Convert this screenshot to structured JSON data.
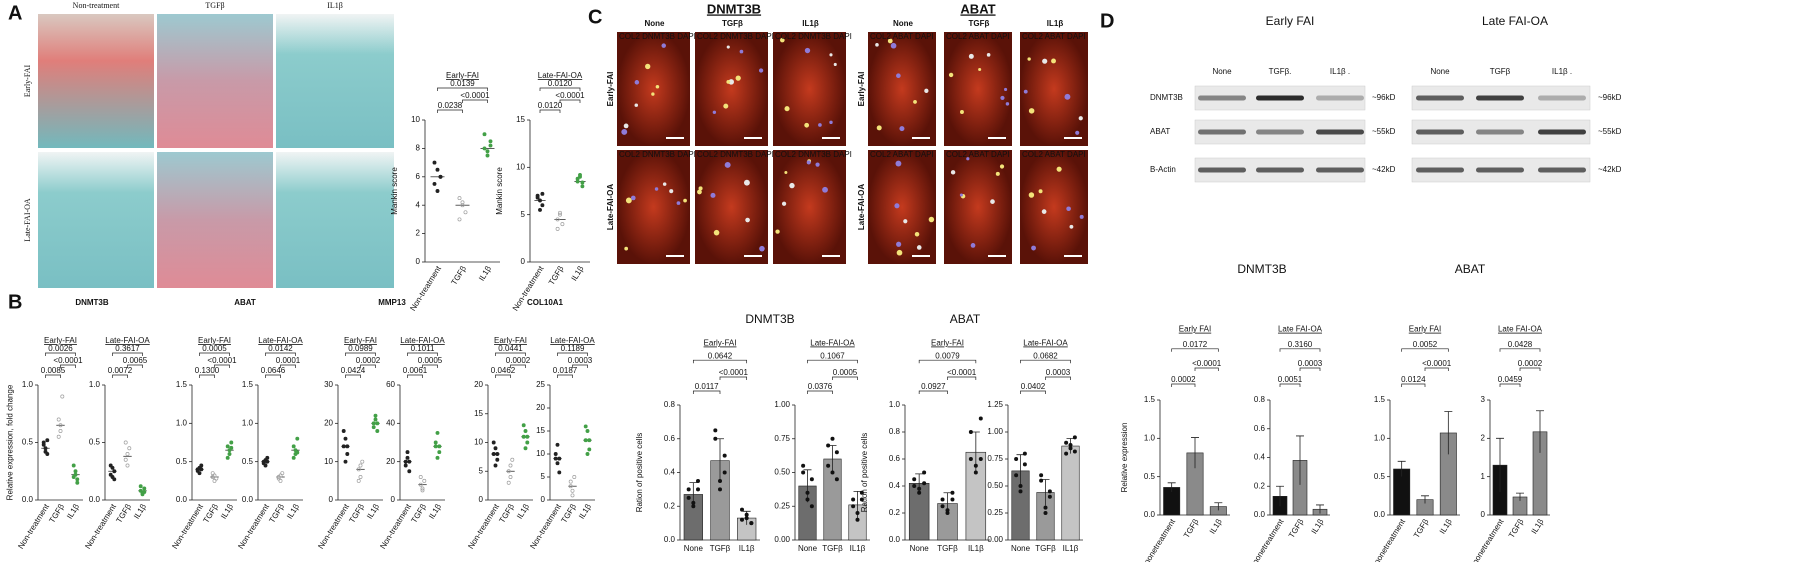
{
  "panels": {
    "A": {
      "letter": "A",
      "columns": [
        "Non-treatment",
        "TGFβ",
        "IL1β"
      ],
      "rows": [
        "Early-FAI",
        "Late-FAI-OA"
      ]
    },
    "B": {
      "letter": "B",
      "genes": [
        "DNMT3B",
        "ABAT",
        "MMP13",
        "COL10A1"
      ]
    },
    "C": {
      "letter": "C",
      "blocks": [
        {
          "gene": "DNMT3B",
          "stain": "COL2 DNMT3B DAPI"
        },
        {
          "gene": "ABAT",
          "stain": "COL2 ABAT DAPI"
        }
      ],
      "columns": [
        "None",
        "TGFβ",
        "IL1β"
      ],
      "rows": [
        "Early-FAI",
        "Late-FAI-OA"
      ],
      "genes": [
        "DNMT3B",
        "ABAT"
      ]
    },
    "D": {
      "letter": "D",
      "blots": [
        {
          "title": "Early FAI",
          "lanes": [
            "None",
            "TGFβ.",
            "IL1β ."
          ]
        },
        {
          "title": "Late FAI-OA",
          "lanes": [
            "None",
            "TGFβ",
            "IL1β ."
          ]
        }
      ],
      "proteins": [
        "DNMT3B",
        "ABAT",
        "B-Actin"
      ],
      "sizes": [
        "~96kD",
        "~55kD",
        "~42kD"
      ],
      "genes": [
        "DNMT3B",
        "ABAT"
      ]
    }
  },
  "chart_data": [
    {
      "type": "strip",
      "title": "Early-FAI",
      "ylabel": "Mankin score",
      "categories": [
        "Non-treatment",
        "TGFβ",
        "IL1β"
      ],
      "colors": [
        "#222222",
        "#9e9e9e",
        "#43a047"
      ],
      "ylim": [
        0,
        10
      ],
      "yticks": [
        0,
        2,
        4,
        6,
        8,
        10
      ],
      "values": [
        6,
        4,
        8
      ],
      "points": [
        [
          7,
          6.5,
          6,
          5.5,
          5,
          6
        ],
        [
          4.5,
          4,
          3.5,
          3,
          4.2
        ],
        [
          8,
          7.5,
          8.5,
          9,
          7.8,
          8.2
        ]
      ],
      "pvalues": [
        "0.0238",
        "<0.0001",
        "0.0139"
      ]
    },
    {
      "type": "strip",
      "title": "Late-FAI-OA",
      "ylabel": "Mankin score",
      "categories": [
        "Non-treatment",
        "TGFβ",
        "IL1β"
      ],
      "colors": [
        "#222222",
        "#9e9e9e",
        "#43a047"
      ],
      "ylim": [
        0,
        15
      ],
      "yticks": [
        0,
        5,
        10,
        15
      ],
      "values": [
        6.5,
        4.5,
        8.5
      ],
      "points": [
        [
          7,
          6.5,
          6,
          6.8,
          5.5,
          7.2
        ],
        [
          4.5,
          5,
          4,
          3.5,
          5.2
        ],
        [
          8.5,
          9,
          8,
          8.8,
          9.2,
          8.4
        ]
      ],
      "pvalues": [
        "0.0120",
        "<0.0001",
        "0.0120"
      ]
    },
    {
      "type": "strip",
      "title": "Early-FAI",
      "ylabel": "Relative expression, fold change",
      "categories": [
        "Non-treatment",
        "TGFβ",
        "IL1β"
      ],
      "colors": [
        "#222222",
        "#9e9e9e",
        "#43a047"
      ],
      "ylim": [
        0,
        1
      ],
      "yticks": [
        {
          "value": 0,
          "label": "0.0"
        },
        0.5,
        {
          "value": 1,
          "label": "1.0"
        }
      ],
      "values": [
        0.45,
        0.65,
        0.22
      ],
      "points": [
        [
          0.5,
          0.45,
          0.4,
          0.48,
          0.42,
          0.52
        ],
        [
          0.7,
          0.6,
          0.9,
          0.55,
          0.65
        ],
        [
          0.2,
          0.25,
          0.18,
          0.3,
          0.22,
          0.15
        ]
      ],
      "pvalues": [
        "0.0085",
        "<0.0001",
        "0.0026"
      ]
    },
    {
      "type": "strip",
      "title": "Late-FAI-OA",
      "categories": [
        "Non-treatment",
        "TGFβ",
        "IL1β"
      ],
      "colors": [
        "#222222",
        "#9e9e9e",
        "#43a047"
      ],
      "ylim": [
        0,
        1
      ],
      "yticks": [
        {
          "value": 0,
          "label": "0.0"
        },
        0.5,
        {
          "value": 1,
          "label": "1.0"
        }
      ],
      "values": [
        0.25,
        0.38,
        0.08
      ],
      "points": [
        [
          0.3,
          0.2,
          0.25,
          0.22,
          0.28,
          0.18
        ],
        [
          0.5,
          0.3,
          0.45,
          0.35,
          0.4
        ],
        [
          0.08,
          0.05,
          0.1,
          0.12,
          0.06,
          0.07
        ]
      ],
      "pvalues": [
        "0.0072",
        "0.0065",
        "0.3617"
      ]
    },
    {
      "type": "strip",
      "title": "Early-FAI",
      "categories": [
        "Non-treatment",
        "TGFβ",
        "IL1β"
      ],
      "colors": [
        "#222222",
        "#9e9e9e",
        "#43a047"
      ],
      "ylim": [
        0,
        1.5
      ],
      "yticks": [
        {
          "value": 0,
          "label": "0.0"
        },
        0.5,
        {
          "value": 1,
          "label": "1.0"
        },
        1.5
      ],
      "values": [
        0.4,
        0.3,
        0.65
      ],
      "points": [
        [
          0.4,
          0.35,
          0.45,
          0.38,
          0.42,
          0.4
        ],
        [
          0.3,
          0.25,
          0.28,
          0.35,
          0.32
        ],
        [
          0.7,
          0.6,
          0.75,
          0.55,
          0.65,
          0.68
        ]
      ],
      "pvalues": [
        "0.1300",
        "<0.0001",
        "0.0005"
      ]
    },
    {
      "type": "strip",
      "title": "Late-FAI-OA",
      "categories": [
        "Non-treatment",
        "TGFβ",
        "IL1β"
      ],
      "colors": [
        "#222222",
        "#9e9e9e",
        "#43a047"
      ],
      "ylim": [
        0,
        1.5
      ],
      "yticks": [
        {
          "value": 0,
          "label": "0.0"
        },
        0.5,
        {
          "value": 1,
          "label": "1.0"
        },
        1.5
      ],
      "values": [
        0.5,
        0.3,
        0.65
      ],
      "points": [
        [
          0.5,
          0.45,
          0.55,
          0.48,
          0.52,
          0.5
        ],
        [
          0.3,
          0.25,
          0.35,
          0.28,
          0.32
        ],
        [
          0.7,
          0.6,
          0.8,
          0.55,
          0.65,
          0.62
        ]
      ],
      "pvalues": [
        "0.0646",
        "0.0001",
        "0.0142"
      ]
    },
    {
      "type": "strip",
      "title": "Early-FAI",
      "categories": [
        "Non-treatment",
        "TGFβ",
        "IL1β"
      ],
      "colors": [
        "#222222",
        "#9e9e9e",
        "#43a047"
      ],
      "ylim": [
        0,
        30
      ],
      "yticks": [
        0,
        10,
        20,
        30
      ],
      "values": [
        14,
        8,
        20
      ],
      "points": [
        [
          14,
          16,
          12,
          18,
          10,
          14
        ],
        [
          8,
          6,
          10,
          5,
          9
        ],
        [
          20,
          22,
          18,
          19,
          21,
          20
        ]
      ],
      "pvalues": [
        "0.0424",
        "0.0002",
        "0.0989"
      ]
    },
    {
      "type": "strip",
      "title": "Late-FAI-OA",
      "categories": [
        "Non-treatment",
        "TGFβ",
        "IL1β"
      ],
      "colors": [
        "#222222",
        "#9e9e9e",
        "#43a047"
      ],
      "ylim": [
        0,
        60
      ],
      "yticks": [
        0,
        20,
        40,
        60
      ],
      "values": [
        20,
        8,
        28
      ],
      "points": [
        [
          20,
          25,
          15,
          18,
          22,
          20
        ],
        [
          8,
          5,
          10,
          12,
          6
        ],
        [
          28,
          35,
          25,
          30,
          22,
          28
        ]
      ],
      "pvalues": [
        "0.0061",
        "0.0005",
        "0.1011"
      ]
    },
    {
      "type": "strip",
      "title": "Early-FAI",
      "categories": [
        "Non-treatment",
        "TGFβ",
        "IL1β"
      ],
      "colors": [
        "#222222",
        "#9e9e9e",
        "#43a047"
      ],
      "ylim": [
        0,
        20
      ],
      "yticks": [
        0,
        5,
        10,
        15,
        20
      ],
      "values": [
        8,
        5,
        11
      ],
      "points": [
        [
          8,
          9,
          7,
          10,
          6,
          8
        ],
        [
          5,
          4,
          7,
          3,
          6
        ],
        [
          11,
          12,
          10,
          13,
          9,
          11
        ]
      ],
      "pvalues": [
        "0.0462",
        "0.0002",
        "0.0441"
      ]
    },
    {
      "type": "strip",
      "title": "Late-FAI-OA",
      "categories": [
        "Non-treatment",
        "TGFβ",
        "IL1β"
      ],
      "colors": [
        "#222222",
        "#9e9e9e",
        "#43a047"
      ],
      "ylim": [
        0,
        25
      ],
      "yticks": [
        0,
        5,
        10,
        15,
        20,
        25
      ],
      "values": [
        9,
        3,
        13
      ],
      "points": [
        [
          9,
          12,
          6,
          10,
          8,
          9
        ],
        [
          3,
          2,
          5,
          4,
          1
        ],
        [
          13,
          15,
          11,
          16,
          10,
          13
        ]
      ],
      "pvalues": [
        "0.0187",
        "0.0003",
        "0.1189"
      ]
    },
    {
      "type": "bar",
      "title": "Early-FAI",
      "ylabel": "Ration of positive cells",
      "categories": [
        "None",
        "TGFβ",
        "IL1β"
      ],
      "colors": [
        "#6d6d6d",
        "#9a9a9a",
        "#c4c4c4"
      ],
      "ylim": [
        0,
        0.8
      ],
      "yticks": [
        {
          "value": 0,
          "label": "0.0"
        },
        0.2,
        0.4,
        0.6,
        0.8
      ],
      "values": [
        0.27,
        0.47,
        0.13
      ],
      "errors": [
        0.07,
        0.13,
        0.04
      ],
      "points": [
        [
          0.3,
          0.2,
          0.35,
          0.25,
          0.22,
          0.3
        ],
        [
          0.6,
          0.35,
          0.5,
          0.65,
          0.3,
          0.4
        ],
        [
          0.12,
          0.15,
          0.1,
          0.18,
          0.13,
          0.1
        ]
      ],
      "pvalues": [
        "0.0117",
        "<0.0001",
        "0.0642"
      ]
    },
    {
      "type": "bar",
      "title": "Late-FAI-OA",
      "categories": [
        "None",
        "TGFβ",
        "IL1β"
      ],
      "colors": [
        "#6d6d6d",
        "#9a9a9a",
        "#c4c4c4"
      ],
      "ylim": [
        0,
        1
      ],
      "yticks": [
        {
          "value": 0,
          "label": "0.00"
        },
        0.25,
        {
          "value": 0.5,
          "label": "0.50"
        },
        0.75,
        {
          "value": 1,
          "label": "1.00"
        }
      ],
      "values": [
        0.4,
        0.6,
        0.26
      ],
      "errors": [
        0.12,
        0.1,
        0.1
      ],
      "points": [
        [
          0.5,
          0.3,
          0.45,
          0.55,
          0.35,
          0.25
        ],
        [
          0.7,
          0.5,
          0.65,
          0.55,
          0.75,
          0.45
        ],
        [
          0.3,
          0.15,
          0.35,
          0.25,
          0.2,
          0.3
        ]
      ],
      "pvalues": [
        "0.0376",
        "0.0005",
        "0.1067"
      ]
    },
    {
      "type": "bar",
      "title": "Early-FAI",
      "ylabel": "Ration of positive cells",
      "categories": [
        "None",
        "TGFβ",
        "IL1β"
      ],
      "colors": [
        "#6d6d6d",
        "#9a9a9a",
        "#c4c4c4"
      ],
      "ylim": [
        0,
        1
      ],
      "yticks": [
        {
          "value": 0,
          "label": "0.0"
        },
        0.2,
        0.4,
        0.6,
        0.8,
        {
          "value": 1,
          "label": "1.0"
        }
      ],
      "values": [
        0.42,
        0.27,
        0.65
      ],
      "errors": [
        0.07,
        0.08,
        0.15
      ],
      "points": [
        [
          0.45,
          0.35,
          0.5,
          0.4,
          0.38,
          0.42
        ],
        [
          0.3,
          0.2,
          0.35,
          0.25,
          0.22,
          0.3
        ],
        [
          0.8,
          0.55,
          0.9,
          0.6,
          0.5,
          0.6
        ]
      ],
      "pvalues": [
        "0.0927",
        "<0.0001",
        "0.0079"
      ]
    },
    {
      "type": "bar",
      "title": "Late-FAI-OA",
      "categories": [
        "None",
        "TGFβ",
        "IL1β"
      ],
      "colors": [
        "#6d6d6d",
        "#9a9a9a",
        "#c4c4c4"
      ],
      "ylim": [
        0,
        1.25
      ],
      "yticks": [
        {
          "value": 0,
          "label": "0.00"
        },
        0.25,
        {
          "value": 0.5,
          "label": "0.50"
        },
        0.75,
        {
          "value": 1,
          "label": "1.00"
        },
        1.25
      ],
      "values": [
        0.64,
        0.44,
        0.87
      ],
      "errors": [
        0.15,
        0.12,
        0.07
      ],
      "points": [
        [
          0.75,
          0.5,
          0.8,
          0.6,
          0.45,
          0.7
        ],
        [
          0.55,
          0.3,
          0.45,
          0.6,
          0.25,
          0.4
        ],
        [
          0.9,
          0.85,
          0.95,
          0.8,
          0.88,
          0.82
        ]
      ],
      "pvalues": [
        "0.0402",
        "0.0003",
        "0.0682"
      ]
    },
    {
      "type": "bar",
      "title": "Early FAI",
      "ylabel": "Relative expression",
      "categories": [
        "nonetreatment",
        "TGFβ",
        "IL1β"
      ],
      "colors": [
        "#111111",
        "#8a8a8a",
        "#8a8a8a"
      ],
      "ylim": [
        0,
        1.5
      ],
      "yticks": [
        {
          "value": 0,
          "label": "0.0"
        },
        0.5,
        {
          "value": 1,
          "label": "1.0"
        },
        1.5
      ],
      "values": [
        0.36,
        0.81,
        0.11
      ],
      "errors": [
        0.06,
        0.2,
        0.05
      ],
      "pvalues": [
        "0.0002",
        "<0.0001",
        "0.0172"
      ]
    },
    {
      "type": "bar",
      "title": "Late FAI-OA",
      "categories": [
        "nonetreatment",
        "TGFβ",
        "IL1β"
      ],
      "colors": [
        "#111111",
        "#8a8a8a",
        "#8a8a8a"
      ],
      "ylim": [
        0,
        0.8
      ],
      "yticks": [
        {
          "value": 0,
          "label": "0.0"
        },
        0.2,
        0.4,
        0.6,
        0.8
      ],
      "values": [
        0.13,
        0.38,
        0.04
      ],
      "errors": [
        0.07,
        0.17,
        0.03
      ],
      "pvalues": [
        "0.0051",
        "0.0003",
        "0.3160"
      ]
    },
    {
      "type": "bar",
      "title": "Early FAI",
      "categories": [
        "nonetreatment",
        "TGFβ",
        "IL1β"
      ],
      "colors": [
        "#111111",
        "#8a8a8a",
        "#8a8a8a"
      ],
      "ylim": [
        0,
        1.5
      ],
      "yticks": [
        {
          "value": 0,
          "label": "0.0"
        },
        0.5,
        {
          "value": 1,
          "label": "1.0"
        },
        1.5
      ],
      "values": [
        0.6,
        0.2,
        1.07
      ],
      "errors": [
        0.1,
        0.05,
        0.28
      ],
      "pvalues": [
        "0.0124",
        "<0.0001",
        "0.0052"
      ]
    },
    {
      "type": "bar",
      "title": "Late FAI-OA",
      "categories": [
        "nonetreatment",
        "TGFβ",
        "IL1β"
      ],
      "colors": [
        "#111111",
        "#8a8a8a",
        "#8a8a8a"
      ],
      "ylim": [
        0,
        3
      ],
      "yticks": [
        0,
        1,
        2,
        3
      ],
      "values": [
        1.3,
        0.47,
        2.17
      ],
      "errors": [
        0.7,
        0.1,
        0.55
      ],
      "pvalues": [
        "0.0459",
        "0.0002",
        "0.0428"
      ]
    }
  ]
}
